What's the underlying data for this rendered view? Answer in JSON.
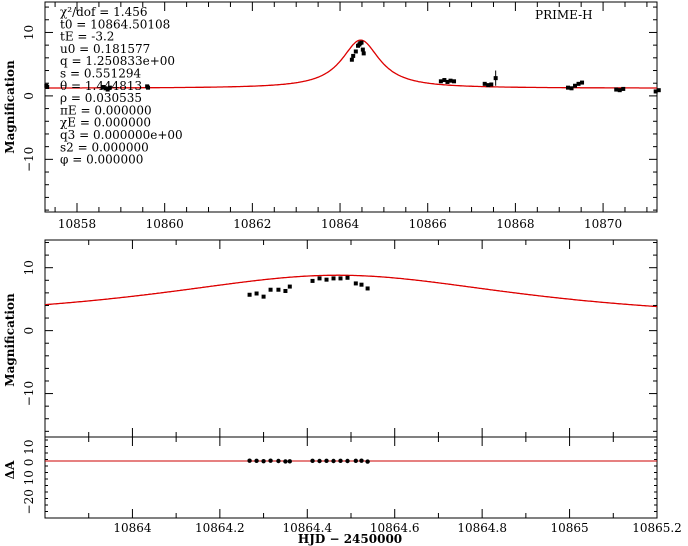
{
  "chart_data": [
    {
      "type": "scatter",
      "panel": "top",
      "title": "PRIME-H",
      "ylabel": "Magnification",
      "xlim": [
        10857.27,
        10871.23
      ],
      "ylim": [
        -18.3,
        14.8
      ],
      "xticks": [
        10858,
        10860,
        10862,
        10864,
        10866,
        10868,
        10870
      ],
      "yticks": [
        10,
        0,
        -10
      ],
      "params": [
        "χ²/dof = 1.456",
        "t0 = 10864.50108",
        "tE = -3.2",
        "u0 = 0.181577",
        "q = 1.250833e+00",
        "s = 0.551294",
        "θ = 1.444813",
        "ρ = 0.030535",
        "πE = 0.000000",
        "χE = 0.000000",
        "q3 = 0.000000e+00",
        "s2 = 0.000000",
        "φ = 0.000000"
      ],
      "model": {
        "t0": 10864.47,
        "peak": 8.8,
        "width": 0.53,
        "baseline": 1.2,
        "color": "#dd0000"
      },
      "points": [
        [
          10857.3,
          1.6
        ],
        [
          10857.32,
          1.4
        ],
        [
          10858.6,
          1.4
        ],
        [
          10858.65,
          1.2
        ],
        [
          10858.7,
          1.0
        ],
        [
          10858.75,
          1.3
        ],
        [
          10859.6,
          1.5
        ],
        [
          10859.62,
          1.3
        ],
        [
          10864.27,
          5.7
        ],
        [
          10864.3,
          6.3
        ],
        [
          10864.36,
          7.0
        ],
        [
          10864.41,
          7.9
        ],
        [
          10864.44,
          8.1
        ],
        [
          10864.46,
          8.3
        ],
        [
          10864.49,
          8.4
        ],
        [
          10864.52,
          7.3
        ],
        [
          10864.54,
          6.7
        ],
        [
          10866.3,
          2.3
        ],
        [
          10866.38,
          2.5
        ],
        [
          10866.45,
          2.2
        ],
        [
          10866.52,
          2.4
        ],
        [
          10866.6,
          2.3
        ],
        [
          10867.3,
          1.9
        ],
        [
          10867.38,
          1.7
        ],
        [
          10867.45,
          1.8
        ],
        [
          10867.55,
          2.8
        ],
        [
          10869.2,
          1.3
        ],
        [
          10869.28,
          1.2
        ],
        [
          10869.36,
          1.6
        ],
        [
          10869.44,
          1.9
        ],
        [
          10869.52,
          2.1
        ],
        [
          10870.3,
          1.0
        ],
        [
          10870.38,
          0.9
        ],
        [
          10870.46,
          1.1
        ],
        [
          10871.2,
          0.7
        ],
        [
          10871.27,
          0.9
        ]
      ]
    },
    {
      "type": "scatter",
      "panel": "zoom",
      "ylabel": "Magnification",
      "xlim": [
        10863.8,
        10865.2
      ],
      "ylim": [
        -16.9,
        14.4
      ],
      "yticks": [
        10,
        0,
        -10
      ],
      "points": [
        [
          10864.268,
          5.7
        ],
        [
          10864.284,
          5.9
        ],
        [
          10864.3,
          5.4
        ],
        [
          10864.316,
          6.5
        ],
        [
          10864.334,
          6.5
        ],
        [
          10864.35,
          6.3
        ],
        [
          10864.36,
          7.0
        ],
        [
          10864.412,
          7.9
        ],
        [
          10864.428,
          8.3
        ],
        [
          10864.444,
          8.1
        ],
        [
          10864.46,
          8.3
        ],
        [
          10864.476,
          8.3
        ],
        [
          10864.492,
          8.4
        ],
        [
          10864.511,
          7.5
        ],
        [
          10864.524,
          7.3
        ],
        [
          10864.538,
          6.7
        ]
      ]
    },
    {
      "type": "scatter",
      "panel": "residual",
      "ylabel": "ΔA",
      "ytick_label": "−20 10 0 10",
      "xlabel": "HJD − 2450000",
      "xlim": [
        10863.8,
        10865.2
      ],
      "ylim": [
        -20,
        10
      ],
      "xticks": [
        "10864",
        "10864.2",
        "10864.4",
        "10864.6",
        "10864.8",
        "10865",
        "10865.2"
      ],
      "residuals": [
        0.2,
        0.1,
        -0.1,
        0.2,
        0.0,
        -0.3,
        -0.2,
        0.1,
        0.0,
        0.1,
        0.0,
        0.1,
        0.0,
        0.1,
        0.2,
        -0.4
      ]
    }
  ]
}
